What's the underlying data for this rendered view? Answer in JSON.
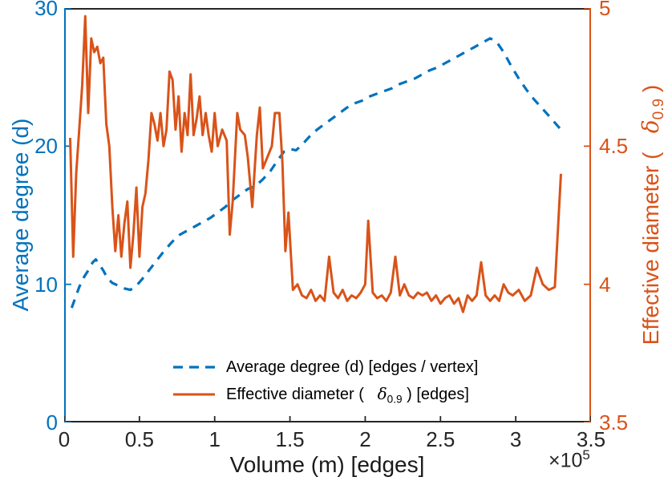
{
  "chart_data": {
    "type": "line",
    "title": "",
    "xlabel": "Volume (m) [edges]",
    "x_exponent_base": "×10",
    "x_exponent_power": "5",
    "xlim": [
      0,
      3.5
    ],
    "x_ticks": [
      "0",
      "0.5",
      "1",
      "1.5",
      "2",
      "2.5",
      "3",
      "3.5"
    ],
    "grid": false,
    "legend_position": "inside-bottom-center",
    "left_axis": {
      "label": "Average degree (d)",
      "color": "#0072BD",
      "lim": [
        0,
        30
      ],
      "ticks": [
        "0",
        "10",
        "20",
        "30"
      ]
    },
    "right_axis": {
      "label_pre": "Effective diameter (   ",
      "label_delta": "δ",
      "label_sub": "0.9",
      "label_post": " )",
      "color": "#D95319",
      "lim": [
        3.5,
        5
      ],
      "ticks": [
        "3.5",
        "4",
        "4.5",
        "5"
      ]
    },
    "legend": {
      "entry1": "Average degree (d) [edges / vertex]",
      "entry2_pre": "Effective diameter (   ",
      "entry2_delta": "δ",
      "entry2_sub": "0.9",
      "entry2_post": " ) [edges]"
    },
    "series": [
      {
        "name": "Average degree (d) [edges / vertex]",
        "axis": "left",
        "color": "#0072BD",
        "style": "dashed",
        "width": 3.2,
        "points": [
          [
            0.05,
            8.3
          ],
          [
            0.08,
            9.2
          ],
          [
            0.1,
            9.8
          ],
          [
            0.13,
            10.5
          ],
          [
            0.16,
            11.0
          ],
          [
            0.19,
            11.6
          ],
          [
            0.21,
            11.8
          ],
          [
            0.23,
            11.5
          ],
          [
            0.26,
            11.0
          ],
          [
            0.29,
            10.4
          ],
          [
            0.32,
            10.1
          ],
          [
            0.36,
            9.9
          ],
          [
            0.4,
            9.7
          ],
          [
            0.44,
            9.6
          ],
          [
            0.48,
            9.9
          ],
          [
            0.52,
            10.4
          ],
          [
            0.57,
            11.1
          ],
          [
            0.62,
            11.8
          ],
          [
            0.67,
            12.5
          ],
          [
            0.72,
            13.1
          ],
          [
            0.77,
            13.6
          ],
          [
            0.82,
            13.9
          ],
          [
            0.87,
            14.2
          ],
          [
            0.92,
            14.5
          ],
          [
            0.97,
            14.8
          ],
          [
            1.02,
            15.2
          ],
          [
            1.07,
            15.6
          ],
          [
            1.12,
            16.1
          ],
          [
            1.17,
            16.5
          ],
          [
            1.22,
            16.9
          ],
          [
            1.27,
            17.1
          ],
          [
            1.32,
            17.6
          ],
          [
            1.37,
            18.2
          ],
          [
            1.42,
            19.0
          ],
          [
            1.46,
            19.6
          ],
          [
            1.5,
            19.8
          ],
          [
            1.54,
            19.7
          ],
          [
            1.58,
            20.1
          ],
          [
            1.63,
            20.7
          ],
          [
            1.68,
            21.2
          ],
          [
            1.73,
            21.6
          ],
          [
            1.78,
            22.0
          ],
          [
            1.83,
            22.4
          ],
          [
            1.88,
            22.8
          ],
          [
            1.93,
            23.1
          ],
          [
            1.98,
            23.3
          ],
          [
            2.03,
            23.6
          ],
          [
            2.08,
            23.8
          ],
          [
            2.13,
            24.0
          ],
          [
            2.18,
            24.2
          ],
          [
            2.23,
            24.5
          ],
          [
            2.28,
            24.7
          ],
          [
            2.33,
            24.9
          ],
          [
            2.38,
            25.2
          ],
          [
            2.43,
            25.5
          ],
          [
            2.48,
            25.7
          ],
          [
            2.53,
            26.0
          ],
          [
            2.58,
            26.3
          ],
          [
            2.63,
            26.6
          ],
          [
            2.68,
            26.9
          ],
          [
            2.73,
            27.2
          ],
          [
            2.78,
            27.5
          ],
          [
            2.83,
            27.8
          ],
          [
            2.87,
            27.6
          ],
          [
            2.92,
            26.8
          ],
          [
            2.97,
            25.8
          ],
          [
            3.02,
            24.9
          ],
          [
            3.07,
            24.1
          ],
          [
            3.12,
            23.4
          ],
          [
            3.17,
            22.8
          ],
          [
            3.22,
            22.2
          ],
          [
            3.26,
            21.7
          ],
          [
            3.3,
            21.2
          ]
        ]
      },
      {
        "name": "Effective diameter (δ_0.9) [edges]",
        "axis": "right",
        "color": "#D95319",
        "style": "solid",
        "width": 3,
        "points": [
          [
            0.04,
            4.53
          ],
          [
            0.06,
            4.1
          ],
          [
            0.08,
            4.4
          ],
          [
            0.1,
            4.56
          ],
          [
            0.12,
            4.72
          ],
          [
            0.14,
            4.97
          ],
          [
            0.16,
            4.62
          ],
          [
            0.18,
            4.89
          ],
          [
            0.2,
            4.84
          ],
          [
            0.22,
            4.86
          ],
          [
            0.24,
            4.8
          ],
          [
            0.26,
            4.82
          ],
          [
            0.28,
            4.58
          ],
          [
            0.3,
            4.5
          ],
          [
            0.32,
            4.28
          ],
          [
            0.34,
            4.12
          ],
          [
            0.36,
            4.25
          ],
          [
            0.38,
            4.1
          ],
          [
            0.4,
            4.22
          ],
          [
            0.42,
            4.3
          ],
          [
            0.44,
            4.06
          ],
          [
            0.46,
            4.18
          ],
          [
            0.48,
            4.35
          ],
          [
            0.5,
            4.1
          ],
          [
            0.52,
            4.28
          ],
          [
            0.54,
            4.33
          ],
          [
            0.56,
            4.45
          ],
          [
            0.58,
            4.62
          ],
          [
            0.6,
            4.58
          ],
          [
            0.62,
            4.52
          ],
          [
            0.64,
            4.62
          ],
          [
            0.66,
            4.5
          ],
          [
            0.68,
            4.56
          ],
          [
            0.7,
            4.77
          ],
          [
            0.72,
            4.74
          ],
          [
            0.74,
            4.56
          ],
          [
            0.76,
            4.68
          ],
          [
            0.78,
            4.48
          ],
          [
            0.8,
            4.62
          ],
          [
            0.82,
            4.54
          ],
          [
            0.84,
            4.76
          ],
          [
            0.86,
            4.54
          ],
          [
            0.88,
            4.6
          ],
          [
            0.9,
            4.68
          ],
          [
            0.92,
            4.54
          ],
          [
            0.94,
            4.62
          ],
          [
            0.96,
            4.54
          ],
          [
            0.98,
            4.48
          ],
          [
            1.0,
            4.62
          ],
          [
            1.02,
            4.5
          ],
          [
            1.05,
            4.56
          ],
          [
            1.08,
            4.52
          ],
          [
            1.1,
            4.18
          ],
          [
            1.12,
            4.3
          ],
          [
            1.15,
            4.62
          ],
          [
            1.17,
            4.56
          ],
          [
            1.2,
            4.54
          ],
          [
            1.22,
            4.46
          ],
          [
            1.25,
            4.28
          ],
          [
            1.28,
            4.54
          ],
          [
            1.3,
            4.64
          ],
          [
            1.32,
            4.42
          ],
          [
            1.35,
            4.46
          ],
          [
            1.38,
            4.5
          ],
          [
            1.4,
            4.62
          ],
          [
            1.43,
            4.62
          ],
          [
            1.45,
            4.44
          ],
          [
            1.47,
            4.12
          ],
          [
            1.49,
            4.26
          ],
          [
            1.52,
            3.98
          ],
          [
            1.55,
            4.0
          ],
          [
            1.58,
            3.96
          ],
          [
            1.61,
            3.95
          ],
          [
            1.64,
            3.98
          ],
          [
            1.67,
            3.94
          ],
          [
            1.7,
            3.96
          ],
          [
            1.73,
            3.94
          ],
          [
            1.76,
            4.1
          ],
          [
            1.79,
            3.97
          ],
          [
            1.82,
            3.95
          ],
          [
            1.85,
            3.98
          ],
          [
            1.88,
            3.94
          ],
          [
            1.91,
            3.96
          ],
          [
            1.94,
            3.95
          ],
          [
            1.97,
            3.97
          ],
          [
            2.0,
            4.0
          ],
          [
            2.02,
            4.23
          ],
          [
            2.05,
            3.97
          ],
          [
            2.08,
            3.95
          ],
          [
            2.11,
            3.96
          ],
          [
            2.14,
            3.94
          ],
          [
            2.17,
            3.97
          ],
          [
            2.2,
            4.1
          ],
          [
            2.23,
            3.96
          ],
          [
            2.26,
            4.0
          ],
          [
            2.29,
            3.96
          ],
          [
            2.32,
            3.95
          ],
          [
            2.35,
            3.97
          ],
          [
            2.38,
            3.96
          ],
          [
            2.41,
            3.97
          ],
          [
            2.44,
            3.94
          ],
          [
            2.47,
            3.96
          ],
          [
            2.5,
            3.93
          ],
          [
            2.53,
            3.95
          ],
          [
            2.56,
            3.96
          ],
          [
            2.59,
            3.93
          ],
          [
            2.62,
            3.95
          ],
          [
            2.65,
            3.9
          ],
          [
            2.68,
            3.96
          ],
          [
            2.71,
            3.94
          ],
          [
            2.74,
            3.96
          ],
          [
            2.77,
            4.08
          ],
          [
            2.8,
            3.96
          ],
          [
            2.83,
            3.94
          ],
          [
            2.86,
            3.96
          ],
          [
            2.89,
            3.94
          ],
          [
            2.92,
            4.0
          ],
          [
            2.95,
            3.97
          ],
          [
            2.98,
            3.96
          ],
          [
            3.02,
            3.98
          ],
          [
            3.06,
            3.94
          ],
          [
            3.1,
            3.96
          ],
          [
            3.14,
            4.06
          ],
          [
            3.18,
            4.0
          ],
          [
            3.22,
            3.98
          ],
          [
            3.26,
            3.99
          ],
          [
            3.3,
            4.4
          ]
        ]
      }
    ]
  }
}
